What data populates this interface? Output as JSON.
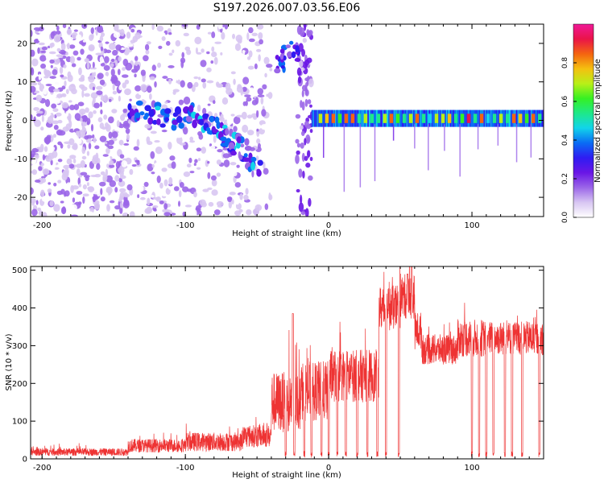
{
  "title": "S197.2026.007.03.56.E06",
  "colors": {
    "snr_line": "#ee3333",
    "axis": "#000000",
    "colormap": [
      "#ffffff",
      "#d8c6f2",
      "#9b66e8",
      "#6a16e6",
      "#2f1cf2",
      "#0a6cf4",
      "#12d4ea",
      "#1ee88a",
      "#35f023",
      "#b8f018",
      "#f4c010",
      "#f46410",
      "#ea1448",
      "#f01898"
    ]
  },
  "chart_data": [
    {
      "type": "heatmap",
      "title": "S197.2026.007.03.56.E06",
      "xlabel": "Height of straight line (km)",
      "ylabel": "Frequency (Hz)",
      "xlim": [
        -208,
        150
      ],
      "ylim": [
        -25,
        25
      ],
      "xticks": [
        -200,
        -100,
        0,
        100
      ],
      "yticks": [
        -20,
        -10,
        0,
        10,
        20
      ],
      "colorbar": {
        "label": "Normalized spectral amplitude",
        "range": [
          0,
          1
        ],
        "ticks": [
          "0.0",
          "0.2",
          "0.4",
          "0.6",
          "0.8"
        ],
        "tick_values": [
          0,
          0.2,
          0.4,
          0.6,
          0.8
        ]
      },
      "features": [
        {
          "name": "noise_region",
          "x_range": [
            -208,
            -40
          ],
          "y_range": [
            -25,
            25
          ],
          "amplitude": 0.12
        },
        {
          "name": "diagonal_trace",
          "points": [
            [
              -140,
              3
            ],
            [
              -125,
              2
            ],
            [
              -110,
              0.5
            ],
            [
              -95,
              1.5
            ],
            [
              -85,
              -1
            ],
            [
              -75,
              -3
            ],
            [
              -68,
              -6
            ],
            [
              -58,
              -8
            ],
            [
              -48,
              -14
            ]
          ],
          "amplitude": 0.35
        },
        {
          "name": "high_cluster",
          "points": [
            [
              -33,
              14
            ],
            [
              -30,
              17
            ],
            [
              -24,
              18
            ]
          ],
          "amplitude": 0.3
        },
        {
          "name": "stable_line",
          "x_range": [
            -12,
            150
          ],
          "frequency": 0.5,
          "amplitude": 0.85
        }
      ]
    },
    {
      "type": "line",
      "xlabel": "Height of straight line (km)",
      "ylabel": "SNR (10 * v/v)",
      "xlim": [
        -208,
        150
      ],
      "ylim": [
        0,
        510
      ],
      "xticks": [
        -200,
        -100,
        0,
        100
      ],
      "yticks": [
        0,
        100,
        200,
        300,
        400,
        500
      ],
      "segments": [
        {
          "x": [
            -208,
            -140
          ],
          "mean": 18,
          "noise": 10
        },
        {
          "x": [
            -140,
            -100
          ],
          "mean": 35,
          "noise": 18
        },
        {
          "x": [
            -100,
            -60
          ],
          "mean": 45,
          "noise": 25
        },
        {
          "x": [
            -60,
            -40
          ],
          "mean": 60,
          "noise": 30
        },
        {
          "x": [
            -40,
            -20
          ],
          "mean": 150,
          "noise": 80
        },
        {
          "x": [
            -20,
            0
          ],
          "mean": 180,
          "noise": 80
        },
        {
          "x": [
            0,
            35
          ],
          "mean": 220,
          "noise": 70
        },
        {
          "x": [
            35,
            50
          ],
          "mean": 400,
          "noise": 60
        },
        {
          "x": [
            50,
            60
          ],
          "mean": 430,
          "noise": 60
        },
        {
          "x": [
            60,
            65
          ],
          "mean": 340,
          "noise": 50
        },
        {
          "x": [
            65,
            90
          ],
          "mean": 290,
          "noise": 40
        },
        {
          "x": [
            90,
            110
          ],
          "mean": 320,
          "noise": 50
        },
        {
          "x": [
            110,
            150
          ],
          "mean": 320,
          "noise": 45
        }
      ],
      "dropouts": [
        -30,
        -24,
        -17,
        -12,
        -5,
        0,
        6,
        12,
        20,
        27,
        34,
        40,
        49,
        100,
        105,
        110,
        115,
        123,
        128,
        135,
        147
      ],
      "peaks": [
        [
          -25,
          385
        ],
        [
          55,
          490
        ],
        [
          58,
          510
        ]
      ]
    }
  ]
}
